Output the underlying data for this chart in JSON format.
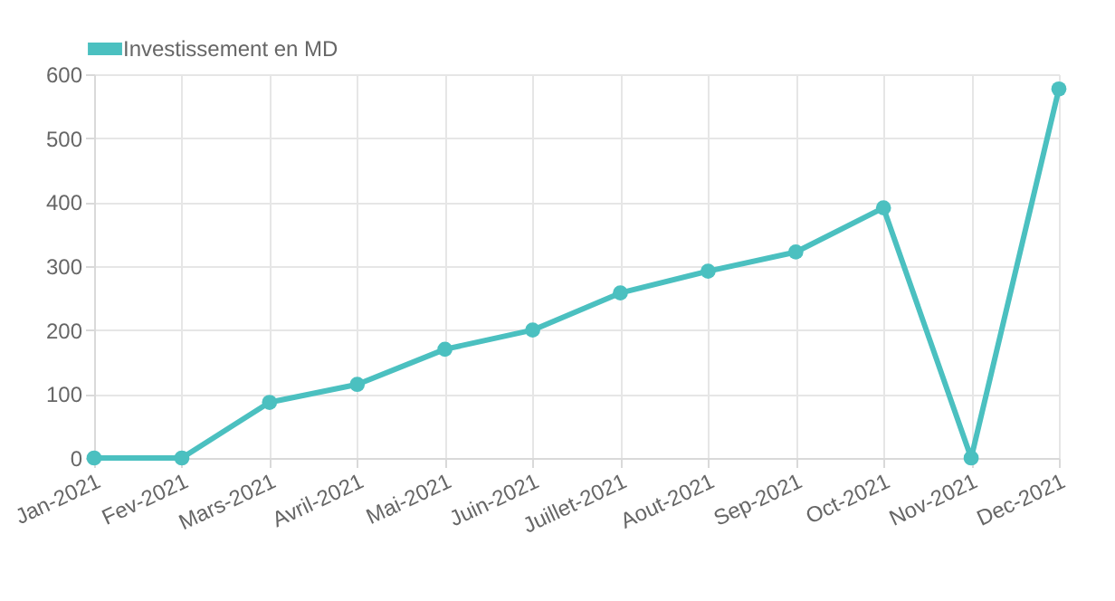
{
  "chart_data": {
    "type": "line",
    "categories": [
      "Jan-2021",
      "Fev-2021",
      "Mars-2021",
      "Avril-2021",
      "Mai-2021",
      "Juin-2021",
      "Juillet-2021",
      "Aout-2021",
      "Sep-2021",
      "Oct-2021",
      "Nov-2021",
      "Dec-2021"
    ],
    "series": [
      {
        "name": "Investissement en MD",
        "color": "#4bc0c0",
        "values": [
          0,
          0,
          87,
          115,
          170,
          200,
          258,
          292,
          322,
          391,
          0,
          577
        ]
      }
    ],
    "ylim": [
      0,
      600
    ],
    "yticks": [
      0,
      100,
      200,
      300,
      400,
      500,
      600
    ],
    "grid": true,
    "legend": "top",
    "marker": "circle",
    "line_style": "solid"
  }
}
